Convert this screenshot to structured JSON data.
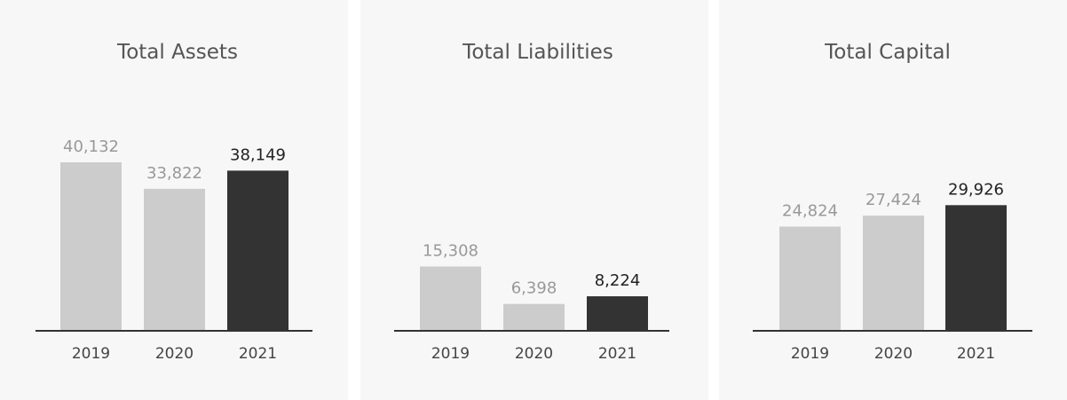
{
  "colors": {
    "past_bar": "#cccccc",
    "current_bar": "#333333",
    "past_label": "#999999",
    "current_label": "#222222",
    "axis": "#333333",
    "panel_background": "#f7f7f7"
  },
  "chart_data": [
    {
      "type": "bar",
      "title": "Total Assets",
      "categories": [
        "2019",
        "2020",
        "2021"
      ],
      "values": [
        40132,
        33822,
        38149
      ],
      "value_labels": [
        "40,132",
        "33,822",
        "38,149"
      ],
      "highlight_index": 2,
      "ylim": [
        0,
        40132
      ],
      "grid": false,
      "legend": "none"
    },
    {
      "type": "bar",
      "title": "Total Liabilities",
      "categories": [
        "2019",
        "2020",
        "2021"
      ],
      "values": [
        15308,
        6398,
        8224
      ],
      "value_labels": [
        "15,308",
        "6,398",
        "8,224"
      ],
      "highlight_index": 2,
      "ylim": [
        0,
        40132
      ],
      "grid": false,
      "legend": "none"
    },
    {
      "type": "bar",
      "title": "Total Capital",
      "categories": [
        "2019",
        "2020",
        "2021"
      ],
      "values": [
        24824,
        27424,
        29926
      ],
      "value_labels": [
        "24,824",
        "27,424",
        "29,926"
      ],
      "highlight_index": 2,
      "ylim": [
        0,
        40132
      ],
      "grid": false,
      "legend": "none"
    }
  ]
}
